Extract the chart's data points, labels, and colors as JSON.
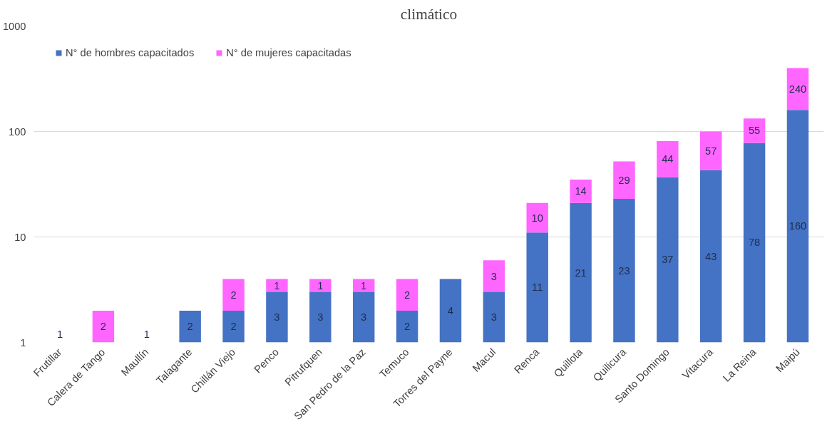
{
  "chart_data": {
    "type": "bar",
    "title": "climático",
    "stacked": true,
    "log": true,
    "categories": [
      "Frutillar",
      "Calera de Tango",
      "Maullín",
      "Talagante",
      "Chillán Viejo",
      "Penco",
      "Pitrufquen",
      "San Pedro de la Paz",
      "Temuco",
      "Torres del Payne",
      "Macul",
      "Renca",
      "Quillota",
      "Quilicura",
      "Santo Domingo",
      "Vitacura",
      "La Reina",
      "Maipú"
    ],
    "series": [
      {
        "name": "N° de hombres capacitados",
        "color": "#4472c4",
        "values": [
          1,
          null,
          null,
          2,
          2,
          3,
          3,
          3,
          2,
          4,
          3,
          11,
          21,
          23,
          37,
          43,
          78,
          160
        ]
      },
      {
        "name": "N° de mujeres capacitadas",
        "color": "#ff66ff",
        "values": [
          null,
          2,
          1,
          null,
          2,
          1,
          1,
          1,
          2,
          null,
          3,
          10,
          14,
          29,
          44,
          57,
          55,
          240
        ]
      }
    ],
    "ylim": [
      1,
      1000
    ],
    "yticks": [
      1,
      10,
      100,
      1000
    ],
    "grid": "y",
    "legend": "top left",
    "data_labels": true
  }
}
